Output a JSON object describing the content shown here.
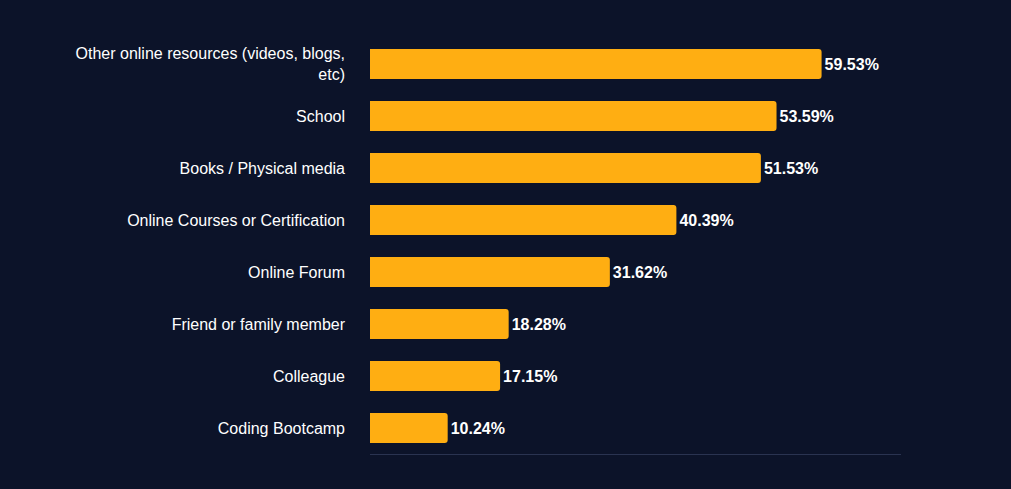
{
  "chart_data": {
    "type": "bar",
    "orientation": "horizontal",
    "categories": [
      "Other online resources (videos, blogs, etc)",
      "School",
      "Books / Physical media",
      "Online Courses or Certification",
      "Online Forum",
      "Friend or family member",
      "Colleague",
      "Coding Bootcamp"
    ],
    "values": [
      59.53,
      53.59,
      51.53,
      40.39,
      31.62,
      18.28,
      17.15,
      10.24
    ],
    "value_labels": [
      "59.53%",
      "53.59%",
      "51.53%",
      "40.39%",
      "31.62%",
      "18.28%",
      "17.15%",
      "10.24%"
    ],
    "data_labels": true,
    "color": "#ffae12",
    "xlim": [
      0,
      70
    ],
    "grid": false,
    "tick_labels": "y"
  }
}
